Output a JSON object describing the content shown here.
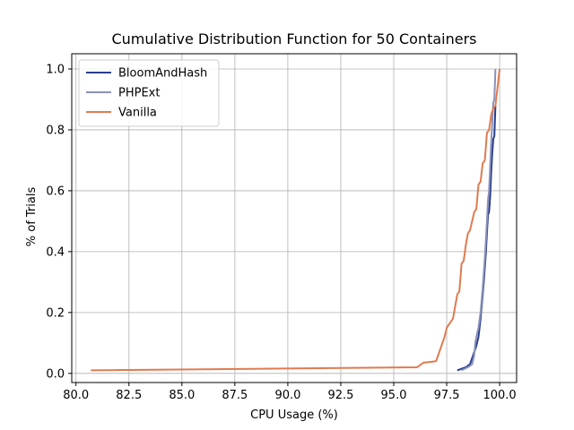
{
  "chart_data": {
    "type": "line",
    "title": "Cumulative Distribution Function for 50 Containers",
    "xlabel": "CPU Usage (%)",
    "ylabel": "% of Trials",
    "xlim": [
      79.8,
      100.8
    ],
    "ylim": [
      -0.03,
      1.05
    ],
    "xticks": [
      80.0,
      82.5,
      85.0,
      87.5,
      90.0,
      92.5,
      95.0,
      97.5,
      100.0
    ],
    "xtick_labels": [
      "80.0",
      "82.5",
      "85.0",
      "87.5",
      "90.0",
      "92.5",
      "95.0",
      "97.5",
      "100.0"
    ],
    "yticks": [
      0.0,
      0.2,
      0.4,
      0.6,
      0.8,
      1.0
    ],
    "ytick_labels": [
      "0.0",
      "0.2",
      "0.4",
      "0.6",
      "0.8",
      "1.0"
    ],
    "grid": true,
    "legend_position": "top-left",
    "series": [
      {
        "name": "BloomAndHash",
        "color": "#2a3d8f",
        "x": [
          98.0,
          98.4,
          98.6,
          98.7,
          98.8,
          98.9,
          99.0,
          99.05,
          99.1,
          99.15,
          99.2,
          99.25,
          99.3,
          99.35,
          99.4,
          99.45,
          99.5,
          99.55,
          99.6,
          99.65,
          99.7,
          99.75,
          99.8
        ],
        "y": [
          0.01,
          0.02,
          0.03,
          0.05,
          0.07,
          0.09,
          0.12,
          0.15,
          0.18,
          0.22,
          0.26,
          0.3,
          0.35,
          0.4,
          0.46,
          0.52,
          0.53,
          0.58,
          0.66,
          0.72,
          0.77,
          0.78,
          0.88
        ]
      },
      {
        "name": "PHPExt",
        "color": "#8a93b8",
        "x": [
          98.2,
          98.5,
          98.7,
          98.8,
          98.85,
          98.9,
          99.0,
          99.1,
          99.15,
          99.2,
          99.25,
          99.3,
          99.35,
          99.4,
          99.45,
          99.5,
          99.55,
          99.6,
          99.65,
          99.7,
          99.75,
          99.8
        ],
        "y": [
          0.01,
          0.02,
          0.03,
          0.06,
          0.1,
          0.12,
          0.15,
          0.2,
          0.24,
          0.28,
          0.33,
          0.38,
          0.44,
          0.5,
          0.57,
          0.6,
          0.68,
          0.76,
          0.82,
          0.89,
          0.9,
          1.0
        ]
      },
      {
        "name": "Vanilla",
        "color": "#e07a50",
        "x": [
          80.7,
          96.1,
          96.3,
          96.4,
          97.0,
          97.1,
          97.3,
          97.4,
          97.5,
          97.6,
          97.8,
          97.9,
          98.0,
          98.1,
          98.2,
          98.3,
          98.4,
          98.5,
          98.6,
          98.8,
          98.9,
          99.0,
          99.1,
          99.2,
          99.3,
          99.4,
          99.5,
          99.6,
          99.7,
          99.8,
          100.0
        ],
        "y": [
          0.01,
          0.02,
          0.03,
          0.035,
          0.04,
          0.06,
          0.1,
          0.12,
          0.15,
          0.16,
          0.18,
          0.22,
          0.26,
          0.27,
          0.36,
          0.37,
          0.42,
          0.46,
          0.47,
          0.53,
          0.54,
          0.62,
          0.63,
          0.69,
          0.7,
          0.79,
          0.8,
          0.85,
          0.87,
          0.88,
          1.0
        ]
      }
    ]
  }
}
